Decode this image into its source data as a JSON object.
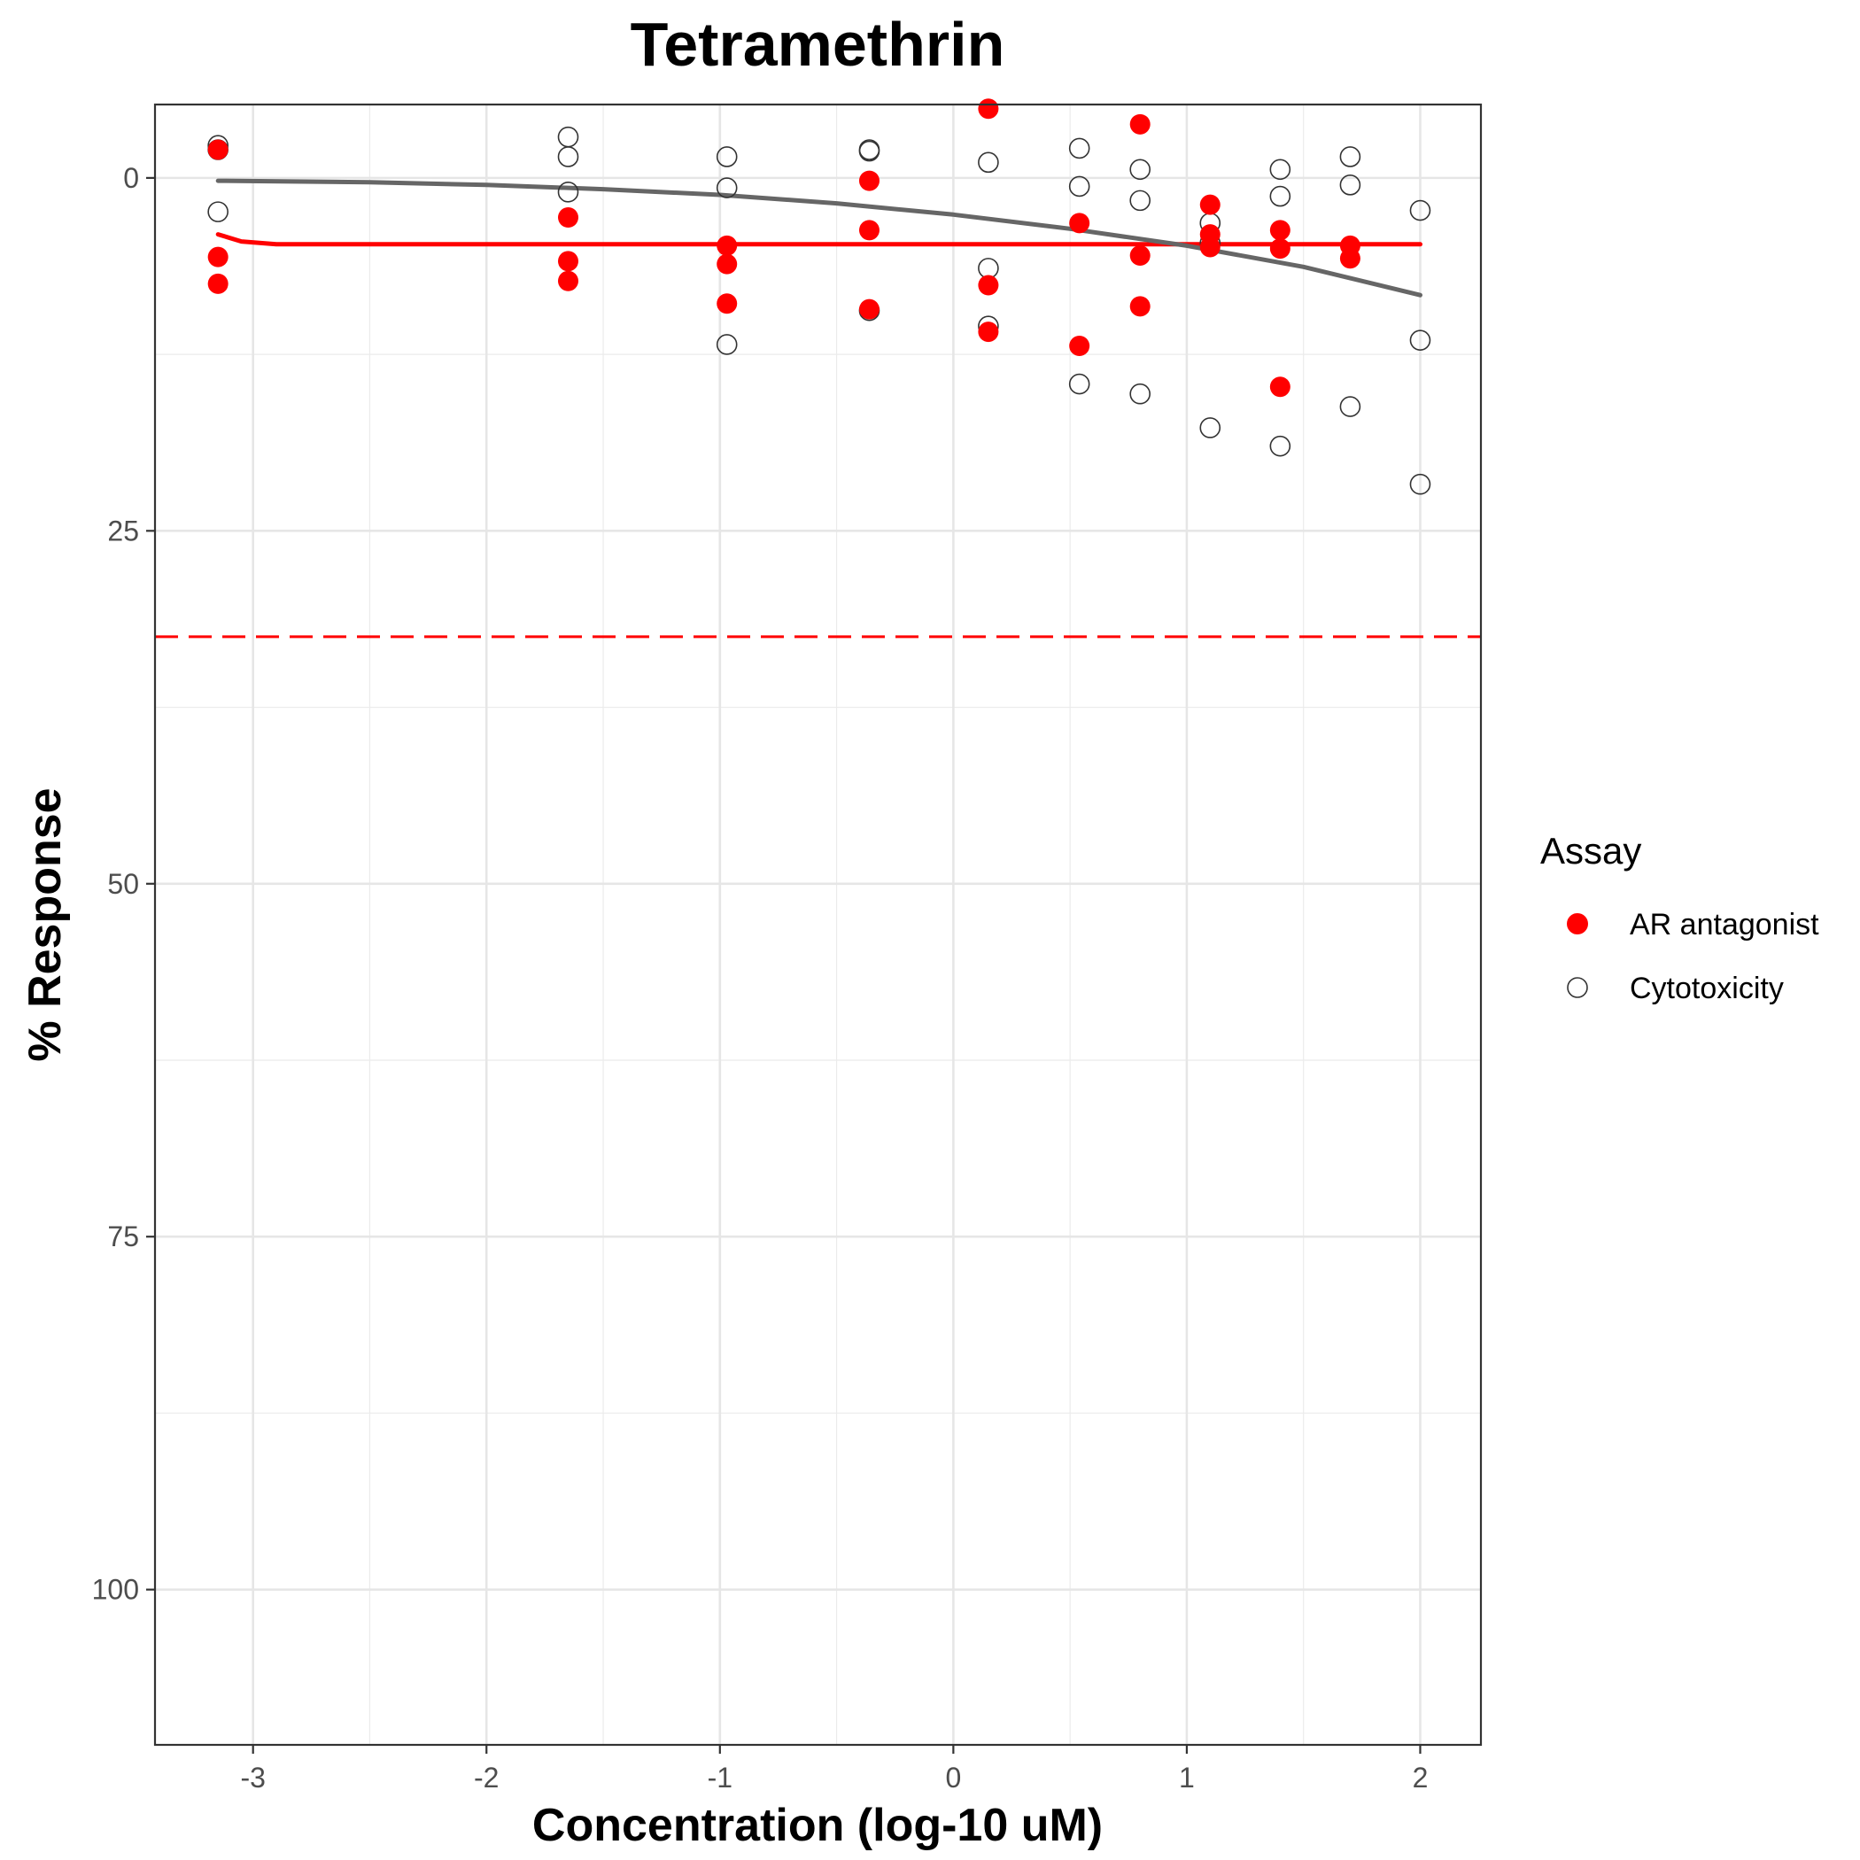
{
  "chart_data": {
    "type": "scatter",
    "title": "Tetramethrin",
    "xlabel": "Concentration (log-10 uM)",
    "ylabel": "% Response",
    "xlim": [
      -3.42,
      2.26
    ],
    "ylim": [
      -5.2,
      111.0
    ],
    "y_reversed": true,
    "xticks": [
      -3,
      -2,
      -1,
      0,
      1,
      2
    ],
    "yticks": [
      0,
      25,
      50,
      75,
      100
    ],
    "grid": true,
    "legend": {
      "title": "Assay",
      "position": "right"
    },
    "threshold_line": {
      "y": 32.5,
      "color": "#ff0000",
      "style": "dashed"
    },
    "series": [
      {
        "name": "AR antagonist",
        "marker": "filled-circle",
        "color": "#ff0000",
        "points": [
          [
            -3.15,
            -2.0
          ],
          [
            -3.15,
            5.6
          ],
          [
            -3.15,
            7.5
          ],
          [
            -1.65,
            2.8
          ],
          [
            -1.65,
            5.9
          ],
          [
            -1.65,
            7.3
          ],
          [
            -0.97,
            4.8
          ],
          [
            -0.97,
            6.1
          ],
          [
            -0.97,
            8.9
          ],
          [
            -0.36,
            0.2
          ],
          [
            -0.36,
            3.7
          ],
          [
            -0.36,
            9.3
          ],
          [
            0.15,
            -4.9
          ],
          [
            0.15,
            7.6
          ],
          [
            0.15,
            10.9
          ],
          [
            0.54,
            3.2
          ],
          [
            0.54,
            11.9
          ],
          [
            0.8,
            -3.8
          ],
          [
            0.8,
            5.5
          ],
          [
            0.8,
            9.1
          ],
          [
            1.1,
            1.9
          ],
          [
            1.1,
            4.0
          ],
          [
            1.1,
            4.9
          ],
          [
            1.4,
            3.7
          ],
          [
            1.4,
            5.0
          ],
          [
            1.4,
            14.8
          ],
          [
            1.7,
            4.8
          ],
          [
            1.7,
            5.7
          ]
        ],
        "fit": [
          [
            -3.15,
            4.0
          ],
          [
            -3.05,
            4.5
          ],
          [
            -2.9,
            4.7
          ],
          [
            -2.5,
            4.7
          ],
          [
            0.0,
            4.7
          ],
          [
            2.0,
            4.7
          ]
        ]
      },
      {
        "name": "Cytotoxicity",
        "marker": "open-circle",
        "color": "#000000",
        "points": [
          [
            -3.15,
            -2.3
          ],
          [
            -3.15,
            -2.0
          ],
          [
            -3.15,
            2.4
          ],
          [
            -1.65,
            -2.9
          ],
          [
            -1.65,
            -1.5
          ],
          [
            -1.65,
            1.0
          ],
          [
            -0.97,
            -1.5
          ],
          [
            -0.97,
            0.7
          ],
          [
            -0.97,
            11.8
          ],
          [
            -0.36,
            -2.0
          ],
          [
            -0.36,
            -1.9
          ],
          [
            -0.36,
            9.4
          ],
          [
            0.15,
            -1.1
          ],
          [
            0.15,
            6.4
          ],
          [
            0.15,
            10.5
          ],
          [
            0.54,
            -2.1
          ],
          [
            0.54,
            0.6
          ],
          [
            0.54,
            14.6
          ],
          [
            0.8,
            -0.6
          ],
          [
            0.8,
            1.6
          ],
          [
            0.8,
            15.3
          ],
          [
            1.1,
            3.2
          ],
          [
            1.1,
            4.6
          ],
          [
            1.1,
            17.7
          ],
          [
            1.4,
            -0.6
          ],
          [
            1.4,
            1.3
          ],
          [
            1.4,
            19.0
          ],
          [
            1.7,
            -1.5
          ],
          [
            1.7,
            0.5
          ],
          [
            1.7,
            16.2
          ],
          [
            2.0,
            2.3
          ],
          [
            2.0,
            11.5
          ],
          [
            2.0,
            21.7
          ]
        ],
        "fit": [
          [
            -3.15,
            0.2
          ],
          [
            -2.5,
            0.3
          ],
          [
            -2.0,
            0.5
          ],
          [
            -1.5,
            0.8
          ],
          [
            -1.0,
            1.2
          ],
          [
            -0.5,
            1.8
          ],
          [
            0.0,
            2.6
          ],
          [
            0.5,
            3.6
          ],
          [
            1.0,
            4.8
          ],
          [
            1.5,
            6.3
          ],
          [
            2.0,
            8.3
          ]
        ]
      }
    ]
  }
}
